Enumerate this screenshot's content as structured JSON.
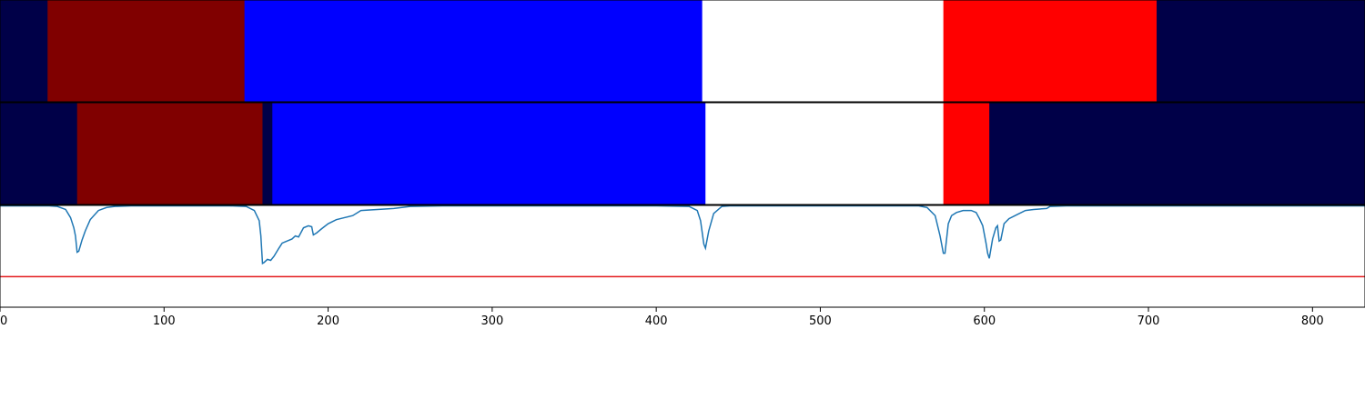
{
  "chart_data": {
    "type": "area",
    "xlim": [
      0,
      832
    ],
    "x_ticks": [
      0,
      100,
      200,
      300,
      400,
      500,
      600,
      700,
      800
    ],
    "x_tick_labels": [
      "0",
      "100",
      "200",
      "300",
      "400",
      "500",
      "600",
      "700",
      "800"
    ],
    "colors": {
      "navy": "#000048",
      "darkred": "#800000",
      "blue": "#0000ff",
      "white": "#ffffff",
      "red": "#ff0000",
      "line": "#1f77b4",
      "threshold": "#e31a1c"
    },
    "segment_rows": [
      {
        "segments": [
          {
            "start": 0,
            "end": 29,
            "color": "navy"
          },
          {
            "start": 29,
            "end": 149,
            "color": "darkred"
          },
          {
            "start": 149,
            "end": 428,
            "color": "blue"
          },
          {
            "start": 428,
            "end": 575,
            "color": "white"
          },
          {
            "start": 575,
            "end": 705,
            "color": "red"
          },
          {
            "start": 705,
            "end": 832,
            "color": "navy"
          }
        ]
      },
      {
        "segments": [
          {
            "start": 0,
            "end": 47,
            "color": "navy"
          },
          {
            "start": 47,
            "end": 160,
            "color": "darkred"
          },
          {
            "start": 160,
            "end": 166,
            "color": "navy"
          },
          {
            "start": 166,
            "end": 430,
            "color": "blue"
          },
          {
            "start": 430,
            "end": 575,
            "color": "white"
          },
          {
            "start": 575,
            "end": 603,
            "color": "red"
          },
          {
            "start": 603,
            "end": 832,
            "color": "navy"
          }
        ]
      }
    ],
    "boundary_panel": {
      "ylim": [
        0,
        1
      ],
      "threshold": 0.3,
      "curve": {
        "x": [
          0,
          30,
          35,
          40,
          43,
          45,
          46,
          47,
          48,
          50,
          52,
          55,
          60,
          65,
          70,
          80,
          140,
          150,
          155,
          158,
          159,
          160,
          161,
          163,
          165,
          167,
          170,
          172,
          175,
          178,
          180,
          182,
          185,
          188,
          190,
          191,
          193,
          196,
          200,
          205,
          210,
          215,
          220,
          230,
          240,
          250,
          270,
          300,
          400,
          420,
          425,
          427,
          429,
          430,
          432,
          435,
          440,
          445,
          450,
          470,
          500,
          560,
          565,
          570,
          573,
          575,
          576,
          578,
          580,
          583,
          587,
          592,
          595,
          597,
          599,
          601,
          602,
          603,
          605,
          607,
          608,
          609,
          610,
          612,
          615,
          620,
          625,
          630,
          638,
          640,
          650,
          700,
          760,
          832
        ],
        "y": [
          1.0,
          1.0,
          0.99,
          0.96,
          0.88,
          0.78,
          0.7,
          0.54,
          0.55,
          0.66,
          0.75,
          0.86,
          0.95,
          0.98,
          0.99,
          1.0,
          1.0,
          0.99,
          0.95,
          0.85,
          0.7,
          0.43,
          0.44,
          0.47,
          0.46,
          0.5,
          0.58,
          0.63,
          0.65,
          0.67,
          0.7,
          0.69,
          0.78,
          0.8,
          0.79,
          0.71,
          0.73,
          0.77,
          0.82,
          0.86,
          0.88,
          0.9,
          0.95,
          0.96,
          0.97,
          0.99,
          1.0,
          1.0,
          1.0,
          0.99,
          0.95,
          0.85,
          0.62,
          0.58,
          0.75,
          0.92,
          0.99,
          1.0,
          1.0,
          1.0,
          1.0,
          1.0,
          0.98,
          0.9,
          0.7,
          0.53,
          0.53,
          0.82,
          0.9,
          0.93,
          0.95,
          0.95,
          0.93,
          0.87,
          0.8,
          0.63,
          0.53,
          0.48,
          0.67,
          0.78,
          0.8,
          0.65,
          0.66,
          0.82,
          0.87,
          0.91,
          0.95,
          0.96,
          0.97,
          0.99,
          1.0,
          1.0,
          1.0,
          1.0
        ]
      }
    }
  }
}
